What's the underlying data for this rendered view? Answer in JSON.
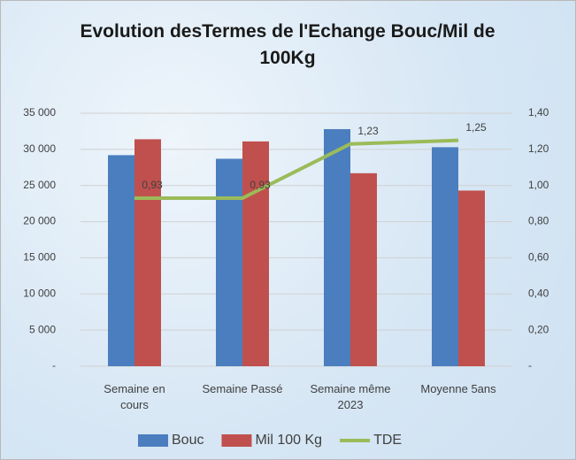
{
  "chart_data": {
    "type": "bar",
    "title": "Evolution desTermes de l'Echange Bouc/Mil de 100Kg",
    "categories": [
      "Semaine en cours",
      "Semaine Passé",
      "Semaine même 2023",
      "Moyenne 5ans"
    ],
    "series": [
      {
        "name": "Bouc",
        "color": "#4a7ebf",
        "values": [
          29200,
          28700,
          32800,
          30300
        ]
      },
      {
        "name": "Mil 100 Kg",
        "color": "#c0504d",
        "values": [
          31400,
          31100,
          26700,
          24300
        ]
      },
      {
        "name": "TDE",
        "type": "line",
        "axis": "y2",
        "color": "#9bbb59",
        "values": [
          0.93,
          0.93,
          1.23,
          1.25
        ],
        "value_labels": [
          "0,93",
          "0,93",
          "1,23",
          "1,25"
        ]
      }
    ],
    "ylim": [
      0,
      35000
    ],
    "yticks": [
      {
        "value": 0,
        "label": "-"
      },
      {
        "value": 5000,
        "label": "5 000"
      },
      {
        "value": 10000,
        "label": "10 000"
      },
      {
        "value": 15000,
        "label": "15 000"
      },
      {
        "value": 20000,
        "label": "20 000"
      },
      {
        "value": 25000,
        "label": "25 000"
      },
      {
        "value": 30000,
        "label": "30 000"
      },
      {
        "value": 35000,
        "label": "35 000"
      }
    ],
    "y2lim": [
      0,
      1.4
    ],
    "y2ticks": [
      {
        "value": 0,
        "label": "-"
      },
      {
        "value": 0.2,
        "label": "0,20"
      },
      {
        "value": 0.4,
        "label": "0,40"
      },
      {
        "value": 0.6,
        "label": "0,60"
      },
      {
        "value": 0.8,
        "label": "0,80"
      },
      {
        "value": 1.0,
        "label": "1,00"
      },
      {
        "value": 1.2,
        "label": "1,20"
      },
      {
        "value": 1.4,
        "label": "1,40"
      }
    ],
    "grid": true,
    "legend": "bottom"
  }
}
